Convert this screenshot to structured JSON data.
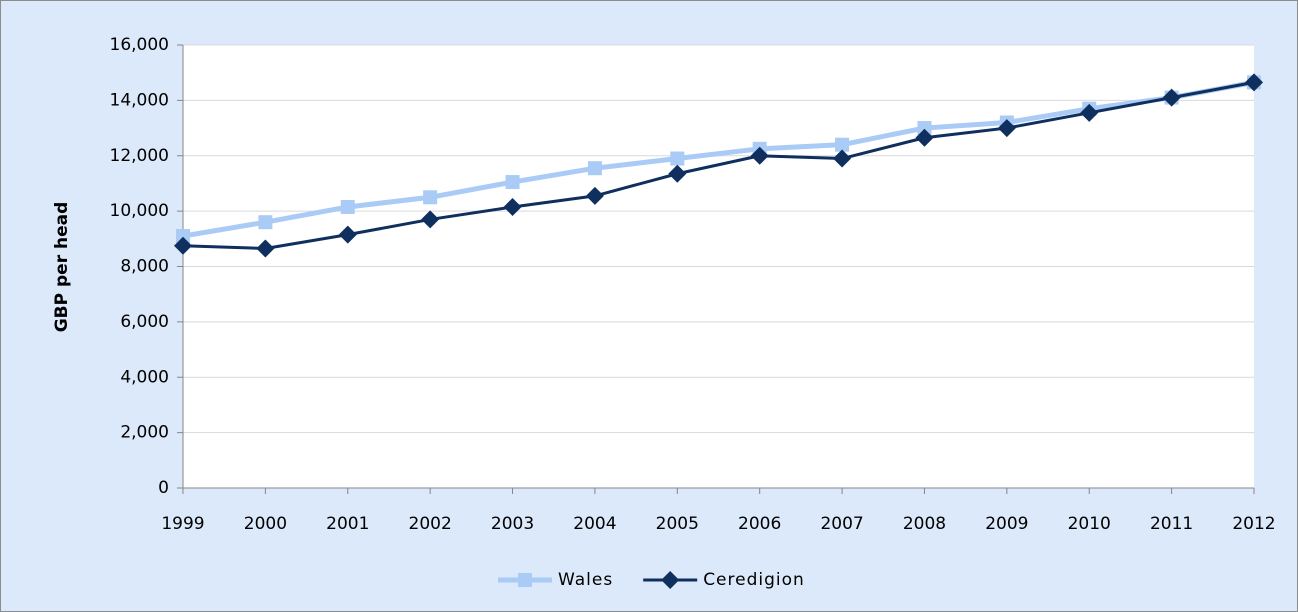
{
  "chart_data": {
    "type": "line",
    "y_label": "GBP per head",
    "categories": [
      "1999",
      "2000",
      "2001",
      "2002",
      "2003",
      "2004",
      "2005",
      "2006",
      "2007",
      "2008",
      "2009",
      "2010",
      "2011",
      "2012"
    ],
    "series": [
      {
        "name": "Wales",
        "color": "#a9cbf5",
        "marker": "square",
        "values": [
          9100,
          9600,
          10150,
          10500,
          11050,
          11550,
          11900,
          12250,
          12400,
          13000,
          13200,
          13700,
          14100,
          14650
        ]
      },
      {
        "name": "Ceredigion",
        "color": "#0f2f5f",
        "marker": "diamond",
        "values": [
          8750,
          8650,
          9150,
          9700,
          10150,
          10550,
          11350,
          12000,
          11900,
          12650,
          13000,
          13550,
          14100,
          14650
        ]
      }
    ],
    "ylim": [
      0,
      16000
    ],
    "yticks": [
      0,
      {
        "value": 2000,
        "label": "2,000"
      },
      {
        "value": 4000,
        "label": "4,000"
      },
      {
        "value": 6000,
        "label": "6,000"
      },
      {
        "value": 8000,
        "label": "8,000"
      },
      {
        "value": 10000,
        "label": "10,000"
      },
      {
        "value": 12000,
        "label": "12,000"
      },
      {
        "value": 14000,
        "label": "14,000"
      },
      {
        "value": 16000,
        "label": "16,000"
      }
    ],
    "grid": true,
    "legend": "bottom"
  }
}
